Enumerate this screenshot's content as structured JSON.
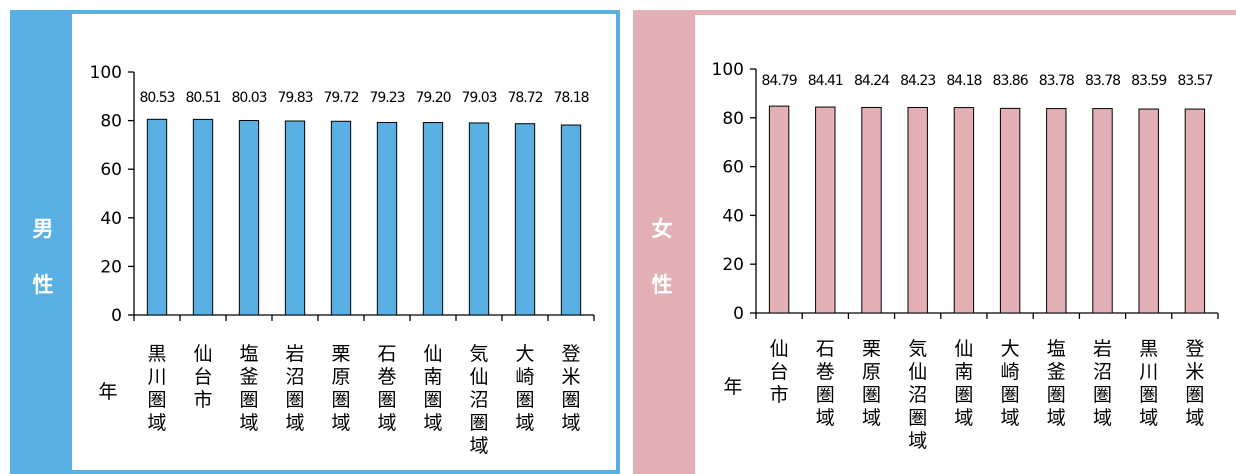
{
  "panels": [
    {
      "id": "male",
      "label_chars": [
        "男",
        "性"
      ]
    },
    {
      "id": "female",
      "label_chars": [
        "女",
        "性"
      ]
    }
  ],
  "chart_data": [
    {
      "type": "bar",
      "categories": [
        "黒川圏域",
        "仙台市",
        "塩釜圏域",
        "岩沼圏域",
        "栗原圏域",
        "石巻圏域",
        "仙南圏域",
        "気仙沼圏域",
        "大崎圏域",
        "登米圏域"
      ],
      "values": [
        80.53,
        80.51,
        80.03,
        79.83,
        79.72,
        79.23,
        79.2,
        79.03,
        78.72,
        78.18
      ],
      "value_labels": [
        "80.53",
        "80.51",
        "80.03",
        "79.83",
        "79.72",
        "79.23",
        "79.20",
        "79.03",
        "78.72",
        "78.18"
      ],
      "ylabel": "年",
      "ylim": [
        0,
        100
      ],
      "yticks": [
        0,
        20,
        40,
        60,
        80,
        100
      ],
      "bar_color": "#5ab0e3",
      "grid": false
    },
    {
      "type": "bar",
      "categories": [
        "仙台市",
        "石巻圏域",
        "栗原圏域",
        "気仙沼圏域",
        "仙南圏域",
        "大崎圏域",
        "塩釜圏域",
        "岩沼圏域",
        "黒川圏域",
        "登米圏域"
      ],
      "values": [
        84.79,
        84.41,
        84.24,
        84.23,
        84.18,
        83.86,
        83.78,
        83.78,
        83.59,
        83.57
      ],
      "value_labels": [
        "84.79",
        "84.41",
        "84.24",
        "84.23",
        "84.18",
        "83.86",
        "83.78",
        "83.78",
        "83.59",
        "83.57"
      ],
      "ylabel": "年",
      "ylim": [
        0,
        100
      ],
      "yticks": [
        0,
        20,
        40,
        60,
        80,
        100
      ],
      "bar_color": "#e3b1b5",
      "grid": false
    }
  ]
}
